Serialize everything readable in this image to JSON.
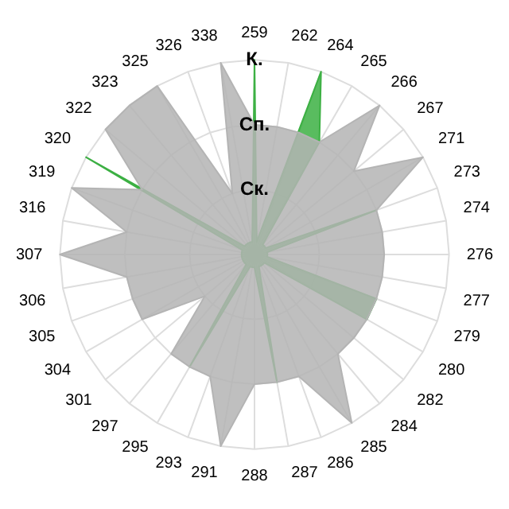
{
  "chart_data": {
    "type": "radar",
    "categories": [
      "259",
      "262",
      "264",
      "265",
      "266",
      "267",
      "271",
      "273",
      "274",
      "276",
      "277",
      "279",
      "280",
      "282",
      "284",
      "285",
      "286",
      "287",
      "288",
      "291",
      "293",
      "295",
      "297",
      "301",
      "304",
      "305",
      "306",
      "307",
      "316",
      "319",
      "320",
      "322",
      "323",
      "325",
      "326",
      "338"
    ],
    "series": [
      {
        "color": "#b4b4b4",
        "values": [
          2,
          2,
          2,
          2,
          3,
          2,
          3,
          2,
          2,
          2,
          2,
          2,
          2,
          2,
          2,
          3,
          2,
          2,
          2,
          3,
          2,
          2,
          2,
          1,
          2,
          2,
          2,
          3,
          2,
          3,
          2,
          3,
          3,
          3,
          1,
          3
        ]
      },
      {
        "color": "#3cb043",
        "values": [
          3,
          0.2,
          3,
          2,
          0.2,
          0.2,
          0.2,
          2,
          0.2,
          0.2,
          0.2,
          2,
          2,
          0.2,
          0.2,
          0.2,
          0.2,
          2,
          0.2,
          0.2,
          0.2,
          2,
          0.2,
          0.2,
          0.2,
          0.2,
          0.2,
          0.2,
          0.2,
          0.2,
          3,
          0.2,
          0.2,
          0.2,
          0.2,
          0.2
        ]
      }
    ],
    "ylim": [
      0,
      3
    ],
    "yticks": [
      {
        "value": 1,
        "label": "Ск."
      },
      {
        "value": 2,
        "label": "Сп."
      },
      {
        "value": 3,
        "label": "К."
      }
    ],
    "grid": true,
    "legend": false,
    "marker": "none"
  }
}
